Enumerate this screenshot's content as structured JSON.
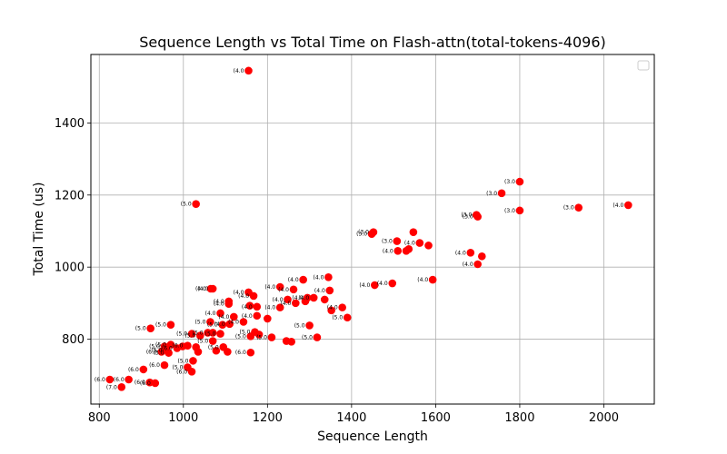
{
  "chart_data": {
    "type": "scatter",
    "title": "Sequence Length vs Total Time on Flash-attn(total-tokens-4096)",
    "xlabel": "Sequence Length",
    "ylabel": "Total Time (us)",
    "xlim": [
      780,
      2120
    ],
    "ylim": [
      620,
      1590
    ],
    "xticks": [
      800,
      1000,
      1200,
      1400,
      1600,
      1800,
      2000
    ],
    "yticks": [
      800,
      1000,
      1200,
      1400
    ],
    "grid": true,
    "legend": "top-right",
    "marker_color": "#ff0000",
    "points": [
      {
        "x": 1155,
        "y": 1545,
        "label": "(4.0"
      },
      {
        "x": 1030,
        "y": 1175,
        "label": "(5.0"
      },
      {
        "x": 1800,
        "y": 1237,
        "label": "(3.0"
      },
      {
        "x": 1757,
        "y": 1205,
        "label": "(3.0"
      },
      {
        "x": 1800,
        "y": 1157,
        "label": "(3.0"
      },
      {
        "x": 1940,
        "y": 1165,
        "label": "(3.0"
      },
      {
        "x": 2058,
        "y": 1172,
        "label": "(4.0"
      },
      {
        "x": 1697,
        "y": 1145,
        "label": "(3.0"
      },
      {
        "x": 1700,
        "y": 1140,
        "label": "(3.0"
      },
      {
        "x": 1452,
        "y": 1097,
        "label": "(3.0"
      },
      {
        "x": 1448,
        "y": 1092,
        "label": "(3.0"
      },
      {
        "x": 1547,
        "y": 1097,
        "label": ""
      },
      {
        "x": 1508,
        "y": 1072,
        "label": "(3.0"
      },
      {
        "x": 1562,
        "y": 1067,
        "label": "(4.0"
      },
      {
        "x": 1583,
        "y": 1060,
        "label": ""
      },
      {
        "x": 1510,
        "y": 1045,
        "label": "(4.0"
      },
      {
        "x": 1530,
        "y": 1045,
        "label": ""
      },
      {
        "x": 1536,
        "y": 1050,
        "label": ""
      },
      {
        "x": 1683,
        "y": 1040,
        "label": "(4.0"
      },
      {
        "x": 1710,
        "y": 1030,
        "label": ""
      },
      {
        "x": 1700,
        "y": 1008,
        "label": "(4.0"
      },
      {
        "x": 1593,
        "y": 965,
        "label": "(4.0"
      },
      {
        "x": 1455,
        "y": 950,
        "label": "(4.0"
      },
      {
        "x": 1497,
        "y": 955,
        "label": "(4.0"
      },
      {
        "x": 1070,
        "y": 940,
        "label": "(4.0"
      },
      {
        "x": 1065,
        "y": 940,
        "label": "(4.0"
      },
      {
        "x": 1285,
        "y": 965,
        "label": "(4.0"
      },
      {
        "x": 1345,
        "y": 972,
        "label": "(4.0"
      },
      {
        "x": 1230,
        "y": 945,
        "label": "(4.0"
      },
      {
        "x": 1262,
        "y": 938,
        "label": "(4.0"
      },
      {
        "x": 1348,
        "y": 935,
        "label": "(4.0"
      },
      {
        "x": 1155,
        "y": 930,
        "label": "(4.0"
      },
      {
        "x": 1167,
        "y": 920,
        "label": "(4.0"
      },
      {
        "x": 1108,
        "y": 905,
        "label": "(4.0"
      },
      {
        "x": 1108,
        "y": 898,
        "label": "(4.0"
      },
      {
        "x": 1248,
        "y": 910,
        "label": "(4.0"
      },
      {
        "x": 1295,
        "y": 915,
        "label": "(4.0"
      },
      {
        "x": 1310,
        "y": 915,
        "label": "(4.0"
      },
      {
        "x": 1267,
        "y": 900,
        "label": "(4.0"
      },
      {
        "x": 1290,
        "y": 905,
        "label": ""
      },
      {
        "x": 1336,
        "y": 910,
        "label": ""
      },
      {
        "x": 1230,
        "y": 888,
        "label": "(4.0"
      },
      {
        "x": 1175,
        "y": 890,
        "label": "(4.0"
      },
      {
        "x": 1158,
        "y": 893,
        "label": ""
      },
      {
        "x": 1378,
        "y": 888,
        "label": "(4.0"
      },
      {
        "x": 1352,
        "y": 880,
        "label": ""
      },
      {
        "x": 1390,
        "y": 860,
        "label": "(5.0"
      },
      {
        "x": 1088,
        "y": 872,
        "label": "(4.0"
      },
      {
        "x": 1120,
        "y": 862,
        "label": "(4.0"
      },
      {
        "x": 1175,
        "y": 865,
        "label": "(4.0"
      },
      {
        "x": 1200,
        "y": 857,
        "label": ""
      },
      {
        "x": 1143,
        "y": 848,
        "label": "(4.0"
      },
      {
        "x": 1064,
        "y": 848,
        "label": "(5.0"
      },
      {
        "x": 1110,
        "y": 842,
        "label": "(4.0"
      },
      {
        "x": 1093,
        "y": 840,
        "label": "(5.0"
      },
      {
        "x": 970,
        "y": 840,
        "label": "(5.0"
      },
      {
        "x": 922,
        "y": 830,
        "label": "(5.0"
      },
      {
        "x": 1300,
        "y": 838,
        "label": "(5.0"
      },
      {
        "x": 1318,
        "y": 805,
        "label": "(5.0"
      },
      {
        "x": 1020,
        "y": 815,
        "label": "(5.0"
      },
      {
        "x": 1058,
        "y": 818,
        "label": "(5.0"
      },
      {
        "x": 1070,
        "y": 818,
        "label": ""
      },
      {
        "x": 1088,
        "y": 815,
        "label": "(5.0"
      },
      {
        "x": 1170,
        "y": 820,
        "label": "(5.0"
      },
      {
        "x": 1180,
        "y": 813,
        "label": ""
      },
      {
        "x": 1040,
        "y": 810,
        "label": "(5.0"
      },
      {
        "x": 1160,
        "y": 808,
        "label": "(5.0"
      },
      {
        "x": 1210,
        "y": 805,
        "label": "(5.0"
      },
      {
        "x": 1245,
        "y": 795,
        "label": ""
      },
      {
        "x": 1257,
        "y": 793,
        "label": ""
      },
      {
        "x": 1070,
        "y": 795,
        "label": "(5.0"
      },
      {
        "x": 970,
        "y": 785,
        "label": "(5.0"
      },
      {
        "x": 955,
        "y": 780,
        "label": "(5.0"
      },
      {
        "x": 985,
        "y": 775,
        "label": "(6.0"
      },
      {
        "x": 998,
        "y": 780,
        "label": ""
      },
      {
        "x": 1010,
        "y": 782,
        "label": "(6.0"
      },
      {
        "x": 1030,
        "y": 778,
        "label": ""
      },
      {
        "x": 1095,
        "y": 778,
        "label": "(5.0"
      },
      {
        "x": 1078,
        "y": 768,
        "label": ""
      },
      {
        "x": 1105,
        "y": 765,
        "label": ""
      },
      {
        "x": 960,
        "y": 770,
        "label": "(5.0"
      },
      {
        "x": 965,
        "y": 762,
        "label": "(5.0"
      },
      {
        "x": 948,
        "y": 765,
        "label": "(6.0"
      },
      {
        "x": 1035,
        "y": 765,
        "label": ""
      },
      {
        "x": 1160,
        "y": 763,
        "label": "(6.0"
      },
      {
        "x": 1023,
        "y": 740,
        "label": "(5.0"
      },
      {
        "x": 955,
        "y": 728,
        "label": "(6.0"
      },
      {
        "x": 1010,
        "y": 722,
        "label": "(5.0"
      },
      {
        "x": 1020,
        "y": 710,
        "label": "(6.0"
      },
      {
        "x": 905,
        "y": 716,
        "label": "(6.0"
      },
      {
        "x": 825,
        "y": 688,
        "label": "(6.0"
      },
      {
        "x": 870,
        "y": 688,
        "label": "(6.0"
      },
      {
        "x": 920,
        "y": 680,
        "label": "(6.0"
      },
      {
        "x": 933,
        "y": 678,
        "label": "(6.0"
      },
      {
        "x": 853,
        "y": 667,
        "label": "(7.0"
      }
    ]
  }
}
